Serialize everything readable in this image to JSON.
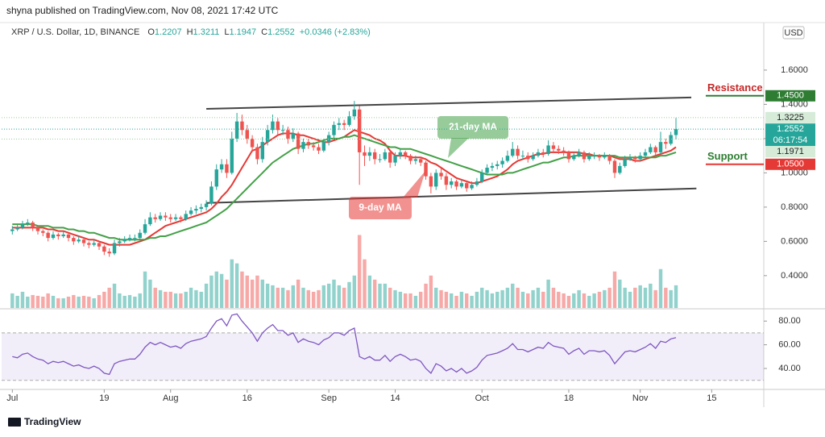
{
  "chart_data": {
    "type": "candlestick",
    "title": "shyna published on TradingView.com, Nov 08, 2021 17:42 UTC",
    "symbol": "XRP / U.S. Dollar, 1D, BINANCE",
    "ohlc_labels": [
      "O",
      "H",
      "L",
      "C"
    ],
    "change": "+0.0346 (+2.83%)",
    "currency": "USD",
    "up_color": "#26a69a",
    "down_color": "#ef5350",
    "ohlc": [
      [
        0.66,
        0.69,
        0.64,
        0.67
      ],
      [
        0.67,
        0.7,
        0.66,
        0.68
      ],
      [
        0.68,
        0.72,
        0.67,
        0.7
      ],
      [
        0.7,
        0.73,
        0.69,
        0.71
      ],
      [
        0.71,
        0.72,
        0.66,
        0.68
      ],
      [
        0.68,
        0.69,
        0.64,
        0.66
      ],
      [
        0.66,
        0.67,
        0.63,
        0.65
      ],
      [
        0.65,
        0.66,
        0.6,
        0.62
      ],
      [
        0.62,
        0.66,
        0.61,
        0.64
      ],
      [
        0.64,
        0.65,
        0.61,
        0.63
      ],
      [
        0.63,
        0.66,
        0.62,
        0.64
      ],
      [
        0.64,
        0.65,
        0.6,
        0.62
      ],
      [
        0.62,
        0.63,
        0.58,
        0.6
      ],
      [
        0.6,
        0.63,
        0.59,
        0.61
      ],
      [
        0.61,
        0.62,
        0.57,
        0.59
      ],
      [
        0.59,
        0.6,
        0.56,
        0.58
      ],
      [
        0.58,
        0.61,
        0.57,
        0.59
      ],
      [
        0.59,
        0.6,
        0.55,
        0.57
      ],
      [
        0.57,
        0.58,
        0.52,
        0.54
      ],
      [
        0.54,
        0.56,
        0.51,
        0.53
      ],
      [
        0.53,
        0.61,
        0.52,
        0.59
      ],
      [
        0.59,
        0.62,
        0.57,
        0.6
      ],
      [
        0.6,
        0.63,
        0.59,
        0.61
      ],
      [
        0.61,
        0.64,
        0.6,
        0.62
      ],
      [
        0.62,
        0.64,
        0.6,
        0.62
      ],
      [
        0.62,
        0.67,
        0.61,
        0.65
      ],
      [
        0.65,
        0.73,
        0.64,
        0.7
      ],
      [
        0.7,
        0.77,
        0.69,
        0.74
      ],
      [
        0.74,
        0.76,
        0.71,
        0.73
      ],
      [
        0.73,
        0.77,
        0.72,
        0.75
      ],
      [
        0.75,
        0.77,
        0.72,
        0.74
      ],
      [
        0.74,
        0.76,
        0.71,
        0.73
      ],
      [
        0.73,
        0.76,
        0.72,
        0.74
      ],
      [
        0.74,
        0.75,
        0.71,
        0.73
      ],
      [
        0.73,
        0.78,
        0.72,
        0.76
      ],
      [
        0.76,
        0.8,
        0.75,
        0.78
      ],
      [
        0.78,
        0.81,
        0.76,
        0.79
      ],
      [
        0.79,
        0.82,
        0.77,
        0.8
      ],
      [
        0.8,
        0.84,
        0.78,
        0.82
      ],
      [
        0.82,
        0.95,
        0.81,
        0.92
      ],
      [
        0.92,
        1.05,
        0.9,
        1.02
      ],
      [
        1.02,
        1.08,
        1.0,
        1.05
      ],
      [
        1.05,
        1.08,
        0.97,
        1.0
      ],
      [
        1.0,
        1.24,
        0.99,
        1.2
      ],
      [
        1.2,
        1.35,
        1.18,
        1.3
      ],
      [
        1.3,
        1.34,
        1.22,
        1.25
      ],
      [
        1.25,
        1.28,
        1.17,
        1.2
      ],
      [
        1.2,
        1.22,
        1.12,
        1.15
      ],
      [
        1.15,
        1.17,
        1.05,
        1.08
      ],
      [
        1.08,
        1.21,
        1.06,
        1.18
      ],
      [
        1.18,
        1.28,
        1.16,
        1.25
      ],
      [
        1.25,
        1.34,
        1.23,
        1.3
      ],
      [
        1.3,
        1.32,
        1.22,
        1.25
      ],
      [
        1.25,
        1.28,
        1.22,
        1.25
      ],
      [
        1.25,
        1.27,
        1.17,
        1.2
      ],
      [
        1.2,
        1.26,
        1.18,
        1.23
      ],
      [
        1.23,
        1.24,
        1.11,
        1.14
      ],
      [
        1.14,
        1.2,
        1.12,
        1.18
      ],
      [
        1.18,
        1.2,
        1.14,
        1.16
      ],
      [
        1.16,
        1.18,
        1.13,
        1.15
      ],
      [
        1.15,
        1.17,
        1.11,
        1.13
      ],
      [
        1.13,
        1.2,
        1.12,
        1.18
      ],
      [
        1.18,
        1.24,
        1.16,
        1.22
      ],
      [
        1.22,
        1.3,
        1.2,
        1.28
      ],
      [
        1.28,
        1.32,
        1.25,
        1.29
      ],
      [
        1.29,
        1.31,
        1.25,
        1.28
      ],
      [
        1.28,
        1.36,
        1.27,
        1.33
      ],
      [
        1.33,
        1.42,
        1.31,
        1.37
      ],
      [
        1.37,
        1.39,
        0.93,
        1.12
      ],
      [
        1.12,
        1.16,
        1.04,
        1.1
      ],
      [
        1.1,
        1.15,
        1.07,
        1.12
      ],
      [
        1.12,
        1.14,
        1.05,
        1.08
      ],
      [
        1.08,
        1.11,
        1.06,
        1.08
      ],
      [
        1.08,
        1.14,
        1.07,
        1.12
      ],
      [
        1.12,
        1.13,
        1.03,
        1.06
      ],
      [
        1.06,
        1.12,
        1.04,
        1.1
      ],
      [
        1.1,
        1.14,
        1.08,
        1.12
      ],
      [
        1.12,
        1.13,
        1.08,
        1.1
      ],
      [
        1.1,
        1.11,
        1.05,
        1.07
      ],
      [
        1.07,
        1.1,
        1.05,
        1.08
      ],
      [
        1.08,
        1.09,
        1.04,
        1.06
      ],
      [
        1.06,
        1.07,
        0.96,
        0.98
      ],
      [
        0.98,
        1.0,
        0.88,
        0.92
      ],
      [
        0.92,
        1.02,
        0.9,
        1.0
      ],
      [
        1.0,
        1.03,
        0.96,
        0.98
      ],
      [
        0.98,
        1.0,
        0.9,
        0.93
      ],
      [
        0.93,
        0.97,
        0.91,
        0.95
      ],
      [
        0.95,
        0.96,
        0.9,
        0.92
      ],
      [
        0.92,
        0.96,
        0.91,
        0.94
      ],
      [
        0.94,
        0.95,
        0.89,
        0.91
      ],
      [
        0.91,
        0.95,
        0.9,
        0.93
      ],
      [
        0.93,
        0.97,
        0.92,
        0.95
      ],
      [
        0.95,
        1.02,
        0.94,
        1.0
      ],
      [
        1.0,
        1.05,
        0.99,
        1.03
      ],
      [
        1.03,
        1.06,
        1.01,
        1.04
      ],
      [
        1.04,
        1.07,
        1.02,
        1.05
      ],
      [
        1.05,
        1.09,
        1.03,
        1.07
      ],
      [
        1.07,
        1.13,
        1.06,
        1.1
      ],
      [
        1.1,
        1.18,
        1.09,
        1.14
      ],
      [
        1.14,
        1.16,
        1.08,
        1.1
      ],
      [
        1.1,
        1.13,
        1.08,
        1.1
      ],
      [
        1.1,
        1.12,
        1.06,
        1.08
      ],
      [
        1.08,
        1.12,
        1.07,
        1.1
      ],
      [
        1.1,
        1.14,
        1.09,
        1.12
      ],
      [
        1.12,
        1.14,
        1.09,
        1.11
      ],
      [
        1.11,
        1.19,
        1.1,
        1.16
      ],
      [
        1.16,
        1.18,
        1.12,
        1.14
      ],
      [
        1.14,
        1.16,
        1.11,
        1.13
      ],
      [
        1.13,
        1.15,
        1.1,
        1.12
      ],
      [
        1.12,
        1.13,
        1.06,
        1.08
      ],
      [
        1.08,
        1.12,
        1.07,
        1.1
      ],
      [
        1.1,
        1.14,
        1.09,
        1.12
      ],
      [
        1.12,
        1.13,
        1.06,
        1.08
      ],
      [
        1.08,
        1.12,
        1.07,
        1.1
      ],
      [
        1.1,
        1.12,
        1.08,
        1.1
      ],
      [
        1.1,
        1.11,
        1.07,
        1.09
      ],
      [
        1.09,
        1.12,
        1.08,
        1.1
      ],
      [
        1.1,
        1.11,
        1.05,
        1.07
      ],
      [
        1.07,
        1.08,
        0.97,
        1.0
      ],
      [
        1.0,
        1.06,
        0.99,
        1.04
      ],
      [
        1.04,
        1.1,
        1.03,
        1.08
      ],
      [
        1.08,
        1.11,
        1.07,
        1.09
      ],
      [
        1.09,
        1.1,
        1.06,
        1.08
      ],
      [
        1.08,
        1.12,
        1.07,
        1.1
      ],
      [
        1.1,
        1.14,
        1.09,
        1.12
      ],
      [
        1.12,
        1.17,
        1.11,
        1.15
      ],
      [
        1.15,
        1.16,
        1.1,
        1.12
      ],
      [
        1.12,
        1.24,
        1.11,
        1.18
      ],
      [
        1.18,
        1.2,
        1.14,
        1.17
      ],
      [
        1.17,
        1.24,
        1.16,
        1.2207
      ],
      [
        1.2207,
        1.3211,
        1.1947,
        1.2552
      ]
    ],
    "series": [
      {
        "name": "9-day MA",
        "color": "#e53935",
        "values": [
          0.68,
          0.68,
          0.68,
          0.68,
          0.68,
          0.68,
          0.68,
          0.67,
          0.67,
          0.66,
          0.66,
          0.65,
          0.64,
          0.63,
          0.62,
          0.61,
          0.61,
          0.6,
          0.59,
          0.58,
          0.58,
          0.58,
          0.58,
          0.58,
          0.59,
          0.6,
          0.61,
          0.63,
          0.65,
          0.67,
          0.69,
          0.7,
          0.71,
          0.72,
          0.73,
          0.74,
          0.75,
          0.76,
          0.77,
          0.79,
          0.82,
          0.86,
          0.89,
          0.93,
          0.98,
          1.03,
          1.08,
          1.13,
          1.14,
          1.16,
          1.18,
          1.2,
          1.22,
          1.23,
          1.23,
          1.23,
          1.22,
          1.22,
          1.21,
          1.2,
          1.19,
          1.18,
          1.18,
          1.19,
          1.2,
          1.21,
          1.23,
          1.25,
          1.24,
          1.23,
          1.22,
          1.2,
          1.19,
          1.17,
          1.13,
          1.1,
          1.1,
          1.1,
          1.09,
          1.09,
          1.09,
          1.08,
          1.06,
          1.05,
          1.03,
          1.01,
          0.99,
          0.97,
          0.96,
          0.95,
          0.94,
          0.94,
          0.95,
          0.96,
          0.97,
          0.98,
          1.0,
          1.02,
          1.05,
          1.07,
          1.08,
          1.09,
          1.1,
          1.11,
          1.11,
          1.12,
          1.12,
          1.12,
          1.12,
          1.12,
          1.12,
          1.12,
          1.11,
          1.11,
          1.1,
          1.1,
          1.1,
          1.1,
          1.09,
          1.08,
          1.08,
          1.08,
          1.07,
          1.07,
          1.08,
          1.09,
          1.1,
          1.11,
          1.12,
          1.13,
          1.15
        ]
      },
      {
        "name": "21-day MA",
        "color": "#43a047",
        "values": [
          0.7,
          0.7,
          0.7,
          0.7,
          0.7,
          0.69,
          0.69,
          0.69,
          0.68,
          0.68,
          0.68,
          0.67,
          0.67,
          0.66,
          0.66,
          0.65,
          0.65,
          0.64,
          0.63,
          0.62,
          0.62,
          0.61,
          0.61,
          0.61,
          0.61,
          0.61,
          0.61,
          0.62,
          0.62,
          0.63,
          0.63,
          0.64,
          0.65,
          0.66,
          0.67,
          0.68,
          0.69,
          0.7,
          0.71,
          0.73,
          0.75,
          0.77,
          0.79,
          0.82,
          0.85,
          0.88,
          0.91,
          0.94,
          0.97,
          1.0,
          1.03,
          1.06,
          1.08,
          1.1,
          1.12,
          1.14,
          1.15,
          1.16,
          1.17,
          1.17,
          1.18,
          1.19,
          1.2,
          1.2,
          1.2,
          1.21,
          1.21,
          1.22,
          1.21,
          1.2,
          1.19,
          1.18,
          1.17,
          1.16,
          1.15,
          1.15,
          1.14,
          1.14,
          1.14,
          1.13,
          1.12,
          1.11,
          1.1,
          1.09,
          1.08,
          1.07,
          1.06,
          1.05,
          1.04,
          1.03,
          1.02,
          1.01,
          1.0,
          0.99,
          0.99,
          0.99,
          0.99,
          1.0,
          1.0,
          1.01,
          1.02,
          1.03,
          1.04,
          1.05,
          1.06,
          1.06,
          1.07,
          1.08,
          1.09,
          1.09,
          1.1,
          1.1,
          1.1,
          1.1,
          1.1,
          1.1,
          1.1,
          1.1,
          1.1,
          1.09,
          1.09,
          1.09,
          1.09,
          1.09,
          1.09,
          1.09,
          1.09,
          1.1,
          1.1,
          1.11,
          1.12
        ]
      }
    ],
    "volume": [
      18,
      15,
      20,
      14,
      16,
      15,
      14,
      18,
      15,
      12,
      12,
      14,
      16,
      14,
      15,
      14,
      12,
      16,
      20,
      25,
      30,
      18,
      15,
      16,
      14,
      18,
      45,
      35,
      25,
      22,
      20,
      20,
      18,
      18,
      20,
      25,
      22,
      20,
      30,
      40,
      45,
      42,
      35,
      60,
      55,
      45,
      40,
      35,
      40,
      35,
      30,
      28,
      25,
      25,
      22,
      28,
      35,
      25,
      22,
      20,
      22,
      28,
      30,
      35,
      28,
      25,
      32,
      40,
      90,
      60,
      40,
      35,
      30,
      30,
      25,
      22,
      20,
      18,
      18,
      15,
      20,
      30,
      40,
      25,
      22,
      20,
      18,
      15,
      20,
      18,
      15,
      20,
      25,
      22,
      18,
      20,
      22,
      25,
      30,
      25,
      20,
      18,
      22,
      25,
      20,
      35,
      25,
      20,
      18,
      15,
      18,
      22,
      18,
      15,
      18,
      20,
      22,
      25,
      45,
      35,
      25,
      20,
      25,
      28,
      25,
      30,
      22,
      48,
      25,
      22,
      28
    ],
    "vlim": [
      0,
      350
    ],
    "rsi": [
      50,
      49,
      52,
      53,
      50,
      48,
      47,
      44,
      46,
      45,
      46,
      44,
      42,
      43,
      41,
      40,
      42,
      40,
      36,
      35,
      44,
      46,
      47,
      48,
      48,
      52,
      58,
      62,
      60,
      62,
      60,
      58,
      59,
      57,
      61,
      63,
      64,
      65,
      67,
      74,
      80,
      82,
      76,
      85,
      86,
      80,
      75,
      70,
      63,
      70,
      74,
      77,
      72,
      72,
      68,
      70,
      62,
      65,
      63,
      62,
      60,
      64,
      66,
      70,
      70,
      68,
      72,
      74,
      50,
      48,
      50,
      47,
      47,
      51,
      46,
      50,
      52,
      50,
      47,
      48,
      46,
      40,
      36,
      44,
      42,
      38,
      40,
      37,
      40,
      36,
      38,
      41,
      47,
      51,
      52,
      53,
      55,
      57,
      61,
      56,
      56,
      54,
      56,
      58,
      57,
      62,
      59,
      58,
      57,
      52,
      55,
      57,
      52,
      55,
      55,
      54,
      55,
      51,
      44,
      49,
      54,
      55,
      54,
      56,
      58,
      61,
      57,
      63,
      62,
      65,
      66
    ],
    "rsi_color": "#7e57c2",
    "rsi_band": [
      30,
      70
    ],
    "rsi_ylim": [
      23,
      89
    ],
    "rsi_yticks": [
      {
        "value": 80,
        "label": "80.00"
      },
      {
        "value": 60,
        "label": "60.00"
      },
      {
        "value": 40,
        "label": "40.00"
      }
    ],
    "xlim": [
      -2.1,
      147.2
    ],
    "xticks": [
      {
        "value": 0,
        "label": "Jul"
      },
      {
        "value": 18,
        "label": "19"
      },
      {
        "value": 31,
        "label": "Aug"
      },
      {
        "value": 46,
        "label": "16"
      },
      {
        "value": 62,
        "label": "Sep"
      },
      {
        "value": 75,
        "label": "14"
      },
      {
        "value": 92,
        "label": "Oct"
      },
      {
        "value": 109,
        "label": "18"
      },
      {
        "value": 123,
        "label": "Nov"
      },
      {
        "value": 137,
        "label": "15"
      }
    ],
    "ylim": [
      0.211,
      1.868
    ],
    "yticks": [
      {
        "value": 0.4,
        "label": "0.4000"
      },
      {
        "value": 0.6,
        "label": "0.6000"
      },
      {
        "value": 0.8,
        "label": "0.8000"
      },
      {
        "value": 1.0,
        "label": "1.0000"
      },
      {
        "value": 1.2,
        "label": "1.2000"
      },
      {
        "value": 1.4,
        "label": "1.4000"
      },
      {
        "value": 1.6,
        "label": "1.6000"
      }
    ],
    "trendlines": [
      {
        "x": [
          38,
          133
        ],
        "y": [
          1.374,
          1.44
        ],
        "color": "#444"
      },
      {
        "x": [
          38,
          134
        ],
        "y": [
          0.824,
          0.909
        ],
        "color": "#444"
      }
    ],
    "price_labels": [
      {
        "value": 1.45,
        "label": "1.4500",
        "color": "#2e7d32",
        "label_color": "#fff",
        "text": "Resistance",
        "text_color": "#c62828"
      },
      {
        "value": 1.3225,
        "label": "1.3225",
        "color": "#d6ecd9",
        "label_color": "#222"
      },
      {
        "value": 1.2552,
        "label": "1.2552",
        "color": "#26a69a",
        "label_color": "#fff",
        "countdown": "06:17:54"
      },
      {
        "value": 1.1971,
        "label": "1.1971",
        "color": "#d6ecd9",
        "label_color": "#222"
      },
      {
        "value": 1.05,
        "label": "1.0500",
        "color": "#e53935",
        "label_color": "#fff",
        "text": "Support",
        "text_color": "#2e7d32"
      }
    ],
    "footer": "TradingView"
  }
}
